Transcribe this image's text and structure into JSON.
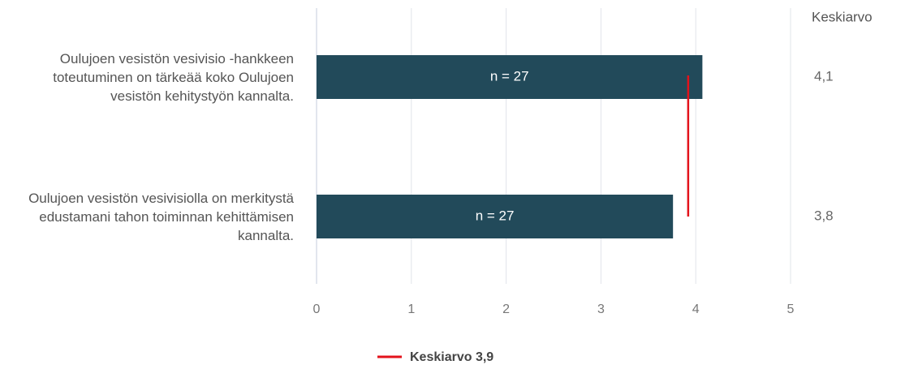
{
  "chart_data": {
    "type": "hbar",
    "categories": [
      "Oulujoen vesistön vesivisio -hankkeen toteutuminen on tärkeää koko Oulujoen vesistön kehitystyön kannalta.",
      "Oulujoen vesistön vesivisiolla on merkitystä edustamani tahon toiminnan kehittämisen kannalta."
    ],
    "values": [
      4.07,
      3.76
    ],
    "value_labels": [
      "4,1",
      "3,8"
    ],
    "bar_labels": [
      "n = 27",
      "n = 27"
    ],
    "value_column_title": "Keskiarvo",
    "color": "#224a5a",
    "mean": {
      "name": "Keskiarvo 3,9",
      "value": 3.92,
      "color": "#e3121b"
    },
    "xlim": [
      0,
      5
    ],
    "xticks": [
      0,
      1,
      2,
      3,
      4,
      5
    ],
    "grid": true
  }
}
